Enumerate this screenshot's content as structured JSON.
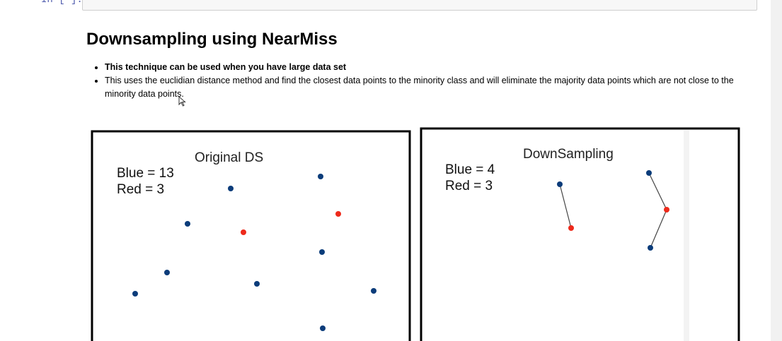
{
  "cell": {
    "prompt": "In [ ]:"
  },
  "markdown": {
    "title": "Downsampling using NearMiss",
    "bullets": [
      "This technique can be used when you have large data set",
      "This uses the euclidian distance method and find the closest data points to the minority class and will eliminate the majority data points which are not close to the minority data points."
    ]
  },
  "figure": {
    "left_panel": {
      "title": "Original DS",
      "count_blue": "Blue = 13",
      "count_red": "Red = 3"
    },
    "right_panel": {
      "title": "DownSampling",
      "count_blue": "Blue = 4",
      "count_red": "Red = 3"
    },
    "colors": {
      "blue": "#0b3c7a",
      "red": "#ee2a1b",
      "frame": "#000000",
      "link": "#444444"
    }
  }
}
